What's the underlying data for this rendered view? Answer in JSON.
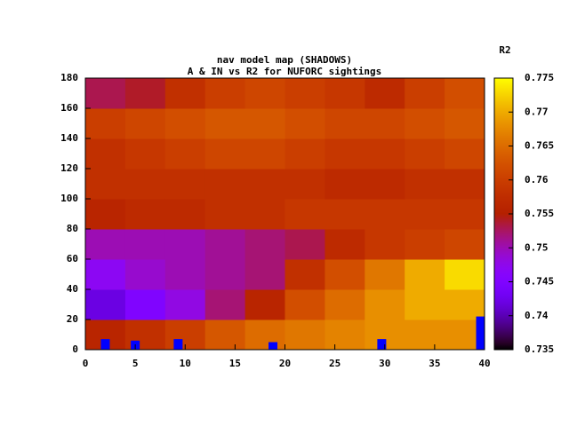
{
  "chart_data": {
    "type": "heatmap",
    "title": "nav model map (SHADOWS)",
    "subtitle": "A & IN vs R2 for NUFORC sightings",
    "x": [
      2,
      6,
      10,
      14,
      18,
      22,
      26,
      30,
      34,
      38
    ],
    "y": [
      10,
      30,
      50,
      70,
      90,
      110,
      130,
      150,
      170
    ],
    "z": [
      [
        0.756,
        0.758,
        0.76,
        0.763,
        0.765,
        0.766,
        0.767,
        0.768,
        0.768,
        0.768
      ],
      [
        0.742,
        0.745,
        0.748,
        0.752,
        0.756,
        0.762,
        0.765,
        0.768,
        0.77,
        0.77
      ],
      [
        0.747,
        0.749,
        0.75,
        0.751,
        0.752,
        0.758,
        0.762,
        0.766,
        0.77,
        0.773
      ],
      [
        0.75,
        0.75,
        0.75,
        0.751,
        0.752,
        0.753,
        0.757,
        0.759,
        0.76,
        0.761
      ],
      [
        0.756,
        0.757,
        0.757,
        0.758,
        0.758,
        0.759,
        0.759,
        0.759,
        0.759,
        0.759
      ],
      [
        0.758,
        0.758,
        0.758,
        0.758,
        0.758,
        0.758,
        0.757,
        0.757,
        0.758,
        0.758
      ],
      [
        0.758,
        0.759,
        0.76,
        0.761,
        0.761,
        0.76,
        0.759,
        0.759,
        0.76,
        0.761
      ],
      [
        0.76,
        0.761,
        0.762,
        0.763,
        0.763,
        0.762,
        0.761,
        0.761,
        0.762,
        0.763
      ],
      [
        0.753,
        0.754,
        0.758,
        0.76,
        0.761,
        0.76,
        0.759,
        0.757,
        0.76,
        0.762
      ]
    ],
    "markers": {
      "color": "#0000ff",
      "x": [
        2,
        5,
        9.3,
        18.8,
        29.7,
        39.6
      ],
      "values": [
        7,
        6,
        7,
        5,
        7,
        22
      ]
    },
    "xlim": [
      0,
      40
    ],
    "xticks": [
      0,
      5,
      10,
      15,
      20,
      25,
      30,
      35,
      40
    ],
    "ylim": [
      0,
      180
    ],
    "yticks": [
      0,
      20,
      40,
      60,
      80,
      100,
      120,
      140,
      160,
      180
    ],
    "zlim": [
      0.735,
      0.775
    ],
    "zticks": [
      0.735,
      0.74,
      0.745,
      0.75,
      0.755,
      0.76,
      0.765,
      0.77,
      0.775
    ],
    "colorbar_label": "R2"
  }
}
